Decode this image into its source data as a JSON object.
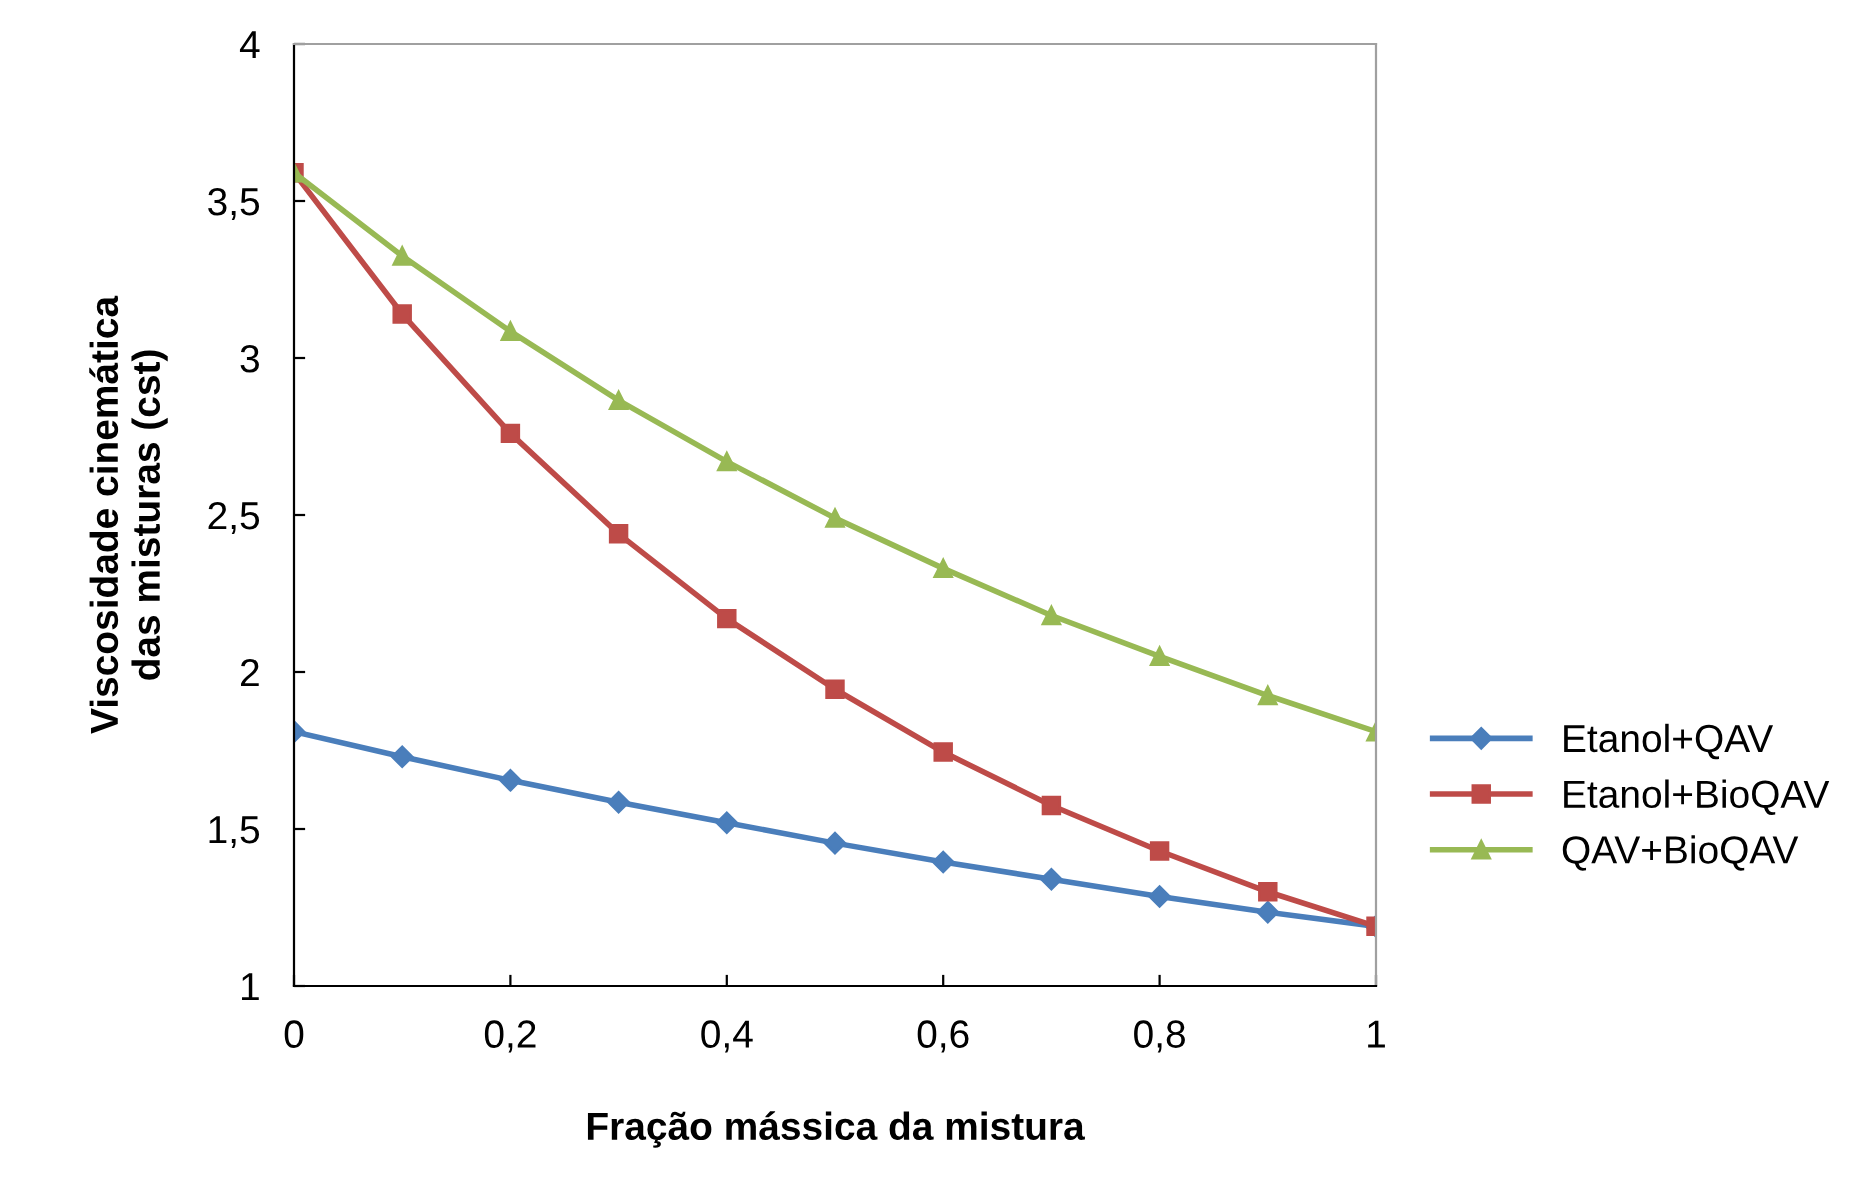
{
  "chart_data": {
    "type": "line",
    "xlabel": "Fração mássica da mistura",
    "ylabel": "Viscosidade cinemática\ndas misturas (cst)",
    "x": [
      0,
      0.1,
      0.2,
      0.3,
      0.4,
      0.5,
      0.6,
      0.7,
      0.8,
      0.9,
      1
    ],
    "xlim": [
      0,
      1
    ],
    "xticks": [
      0,
      {
        "value": 0.2,
        "label": "0,2"
      },
      {
        "value": 0.4,
        "label": "0,4"
      },
      {
        "value": 0.6,
        "label": "0,6"
      },
      {
        "value": 0.8,
        "label": "0,8"
      },
      1
    ],
    "ylim": [
      1,
      4
    ],
    "yticks": [
      1,
      {
        "value": 1.5,
        "label": "1,5"
      },
      2,
      {
        "value": 2.5,
        "label": "2,5"
      },
      3,
      {
        "value": 3.5,
        "label": "3,5"
      },
      4
    ],
    "grid": false,
    "legend": "right",
    "series": [
      {
        "name": "Etanol+QAV",
        "color": "#4a7ebb",
        "marker": "diamond",
        "values": [
          1.81,
          1.73,
          1.655,
          1.585,
          1.52,
          1.455,
          1.395,
          1.34,
          1.285,
          1.235,
          1.19
        ]
      },
      {
        "name": "Etanol+BioQAV",
        "color": "#be4b48",
        "marker": "square",
        "values": [
          3.59,
          3.14,
          2.76,
          2.44,
          2.17,
          1.945,
          1.745,
          1.575,
          1.43,
          1.3,
          1.19
        ]
      },
      {
        "name": "QAV+BioQAV",
        "color": "#98b954",
        "marker": "triangle",
        "values": [
          3.59,
          3.325,
          3.085,
          2.865,
          2.67,
          2.49,
          2.33,
          2.18,
          2.05,
          1.925,
          1.81
        ]
      }
    ]
  }
}
